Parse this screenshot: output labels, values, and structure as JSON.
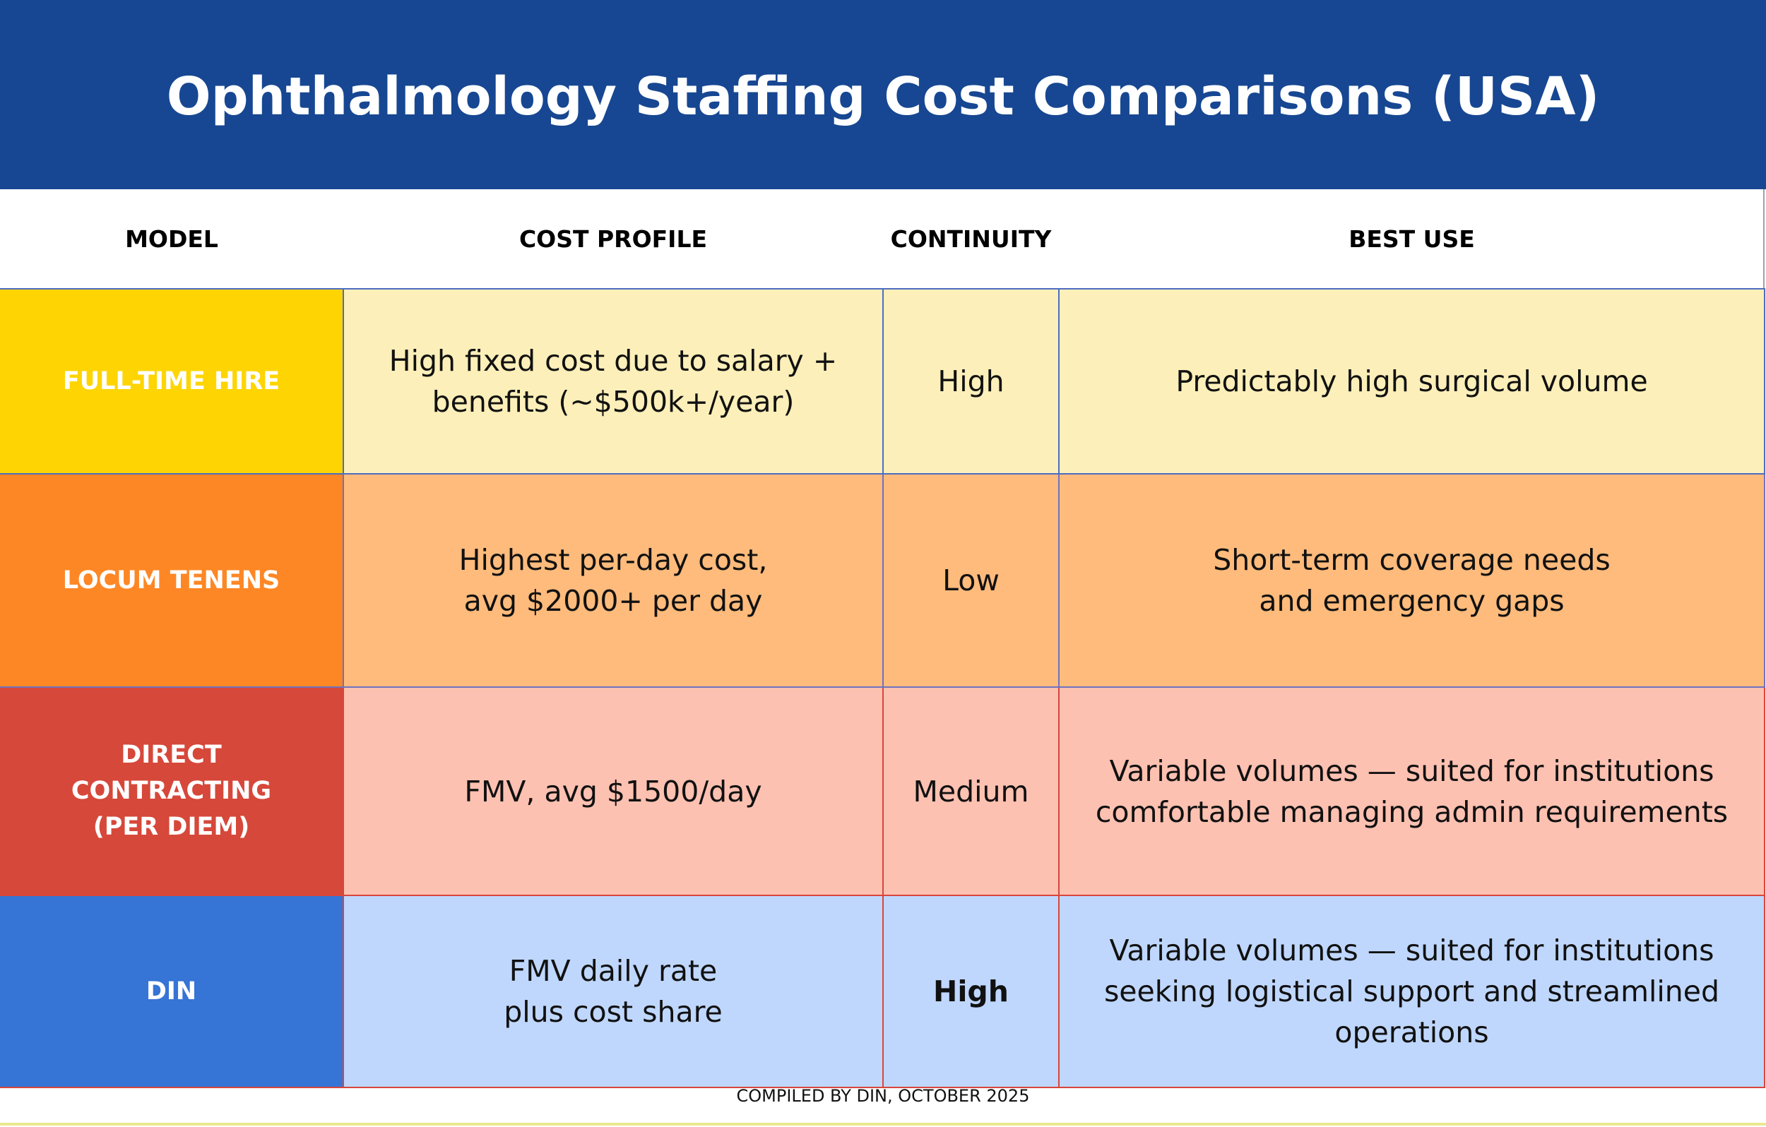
{
  "title": "Ophthalmology Staffing Cost Comparisons (USA)",
  "columns": [
    "MODEL",
    "COST PROFILE",
    "CONTINUITY",
    "BEST USE"
  ],
  "rows": [
    {
      "model": [
        "FULL-TIME HIRE"
      ],
      "cost_profile": [
        "High fixed cost due to salary +",
        "benefits (~$500k+/year)"
      ],
      "continuity": "High",
      "best_use": [
        "Predictably high surgical volume"
      ]
    },
    {
      "model": [
        "LOCUM TENENS"
      ],
      "cost_profile": [
        "Highest per-day cost,",
        "avg $2000+ per day"
      ],
      "continuity": "Low",
      "best_use": [
        "Short-term coverage needs",
        "and emergency gaps"
      ]
    },
    {
      "model": [
        "DIRECT",
        "CONTRACTING",
        "(PER DIEM)"
      ],
      "cost_profile": [
        "FMV, avg $1500/day"
      ],
      "continuity": "Medium",
      "best_use": [
        "Variable volumes — suited for institutions",
        "comfortable managing admin requirements"
      ]
    },
    {
      "model": [
        "DIN"
      ],
      "cost_profile": [
        "FMV daily rate",
        "plus cost share"
      ],
      "continuity": "High",
      "best_use": [
        "Variable volumes — suited for institutions",
        "seeking logistical support and streamlined",
        "operations"
      ]
    }
  ],
  "footer": "COMPILED BY DIN, OCTOBER 2025",
  "colors": {
    "header_bg": "#174792",
    "full_time_model": "#fed502",
    "full_time_row": "#fcefb9",
    "locum_model": "#fe8725",
    "locum_row": "#febb7c",
    "direct_model": "#d6483a",
    "direct_row": "#fdc1b1",
    "din_model": "#3674d6",
    "din_row": "#bfd7fd"
  }
}
